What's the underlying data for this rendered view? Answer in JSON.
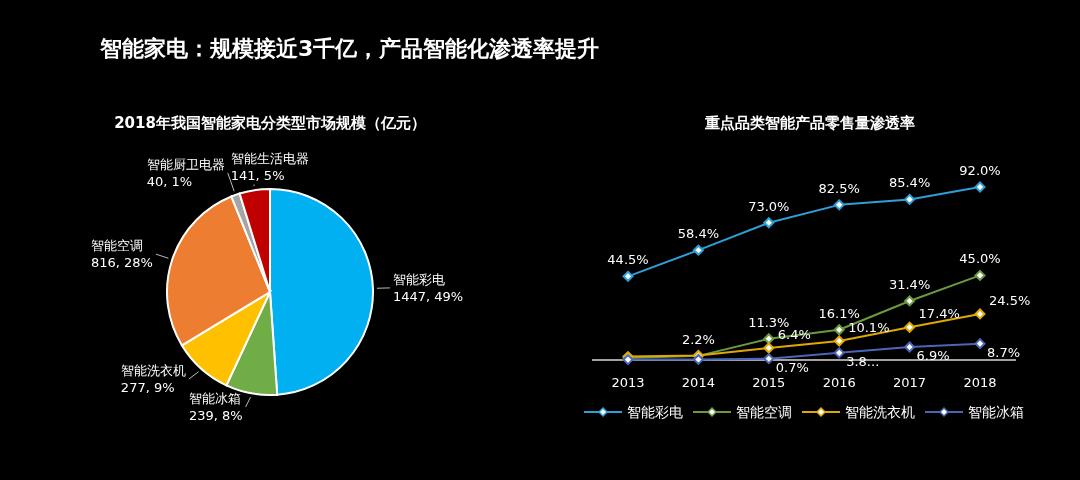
{
  "chart_data": [
    {
      "type": "pie",
      "title": "2018年我国智能家电分类型市场规模（亿元）",
      "annotations": [
        "智能家电：规模接近3千亿，产品智能化渗透率提升"
      ],
      "categories": [
        "智能彩电",
        "智能冰箱",
        "智能洗衣机",
        "智能空调",
        "智能厨卫电器",
        "智能生活电器"
      ],
      "values": [
        1447,
        239,
        277,
        816,
        40,
        141
      ],
      "value_labels": [
        "1447, 49%",
        "239, 8%",
        "277, 9%",
        "816, 28%",
        "40, 1%",
        "141, 5%"
      ],
      "colors": [
        "#00b0f0",
        "#70ad47",
        "#ffc000",
        "#ed7d31",
        "#a5a5a5",
        "#c00000"
      ]
    },
    {
      "type": "line",
      "title": "重点品类智能产品零售量渗透率",
      "categories": [
        "2013",
        "2014",
        "2015",
        "2016",
        "2017",
        "2018"
      ],
      "marker": "diamond",
      "legend": "bottom",
      "series": [
        {
          "name": "智能彩电",
          "color": "#2e9fd8",
          "values": [
            44.5,
            58.4,
            73.0,
            82.5,
            85.4,
            92.0
          ],
          "value_labels": [
            "44.5%",
            "58.4%",
            "73.0%",
            "82.5%",
            "85.4%",
            "92.0%"
          ]
        },
        {
          "name": "智能空调",
          "color": "#6a9a40",
          "values": [
            1.0,
            2.2,
            11.3,
            16.1,
            31.4,
            45.0
          ],
          "value_labels": [
            null,
            "2.2%",
            "11.3%",
            "16.1%",
            "31.4%",
            "45.0%"
          ]
        },
        {
          "name": "智能洗衣机",
          "color": "#e0a800",
          "values": [
            1.8,
            2.4,
            6.4,
            10.1,
            17.4,
            24.5
          ],
          "value_labels": [
            null,
            null,
            "6.4%",
            "10.1%",
            "17.4%",
            "24.5%"
          ]
        },
        {
          "name": "智能冰箱",
          "color": "#4a66b8",
          "values": [
            0.2,
            0.3,
            0.7,
            3.8,
            6.9,
            8.7
          ],
          "value_labels": [
            null,
            null,
            "0.7%",
            "3.8...",
            "6.9%",
            "8.7%"
          ]
        }
      ]
    }
  ]
}
